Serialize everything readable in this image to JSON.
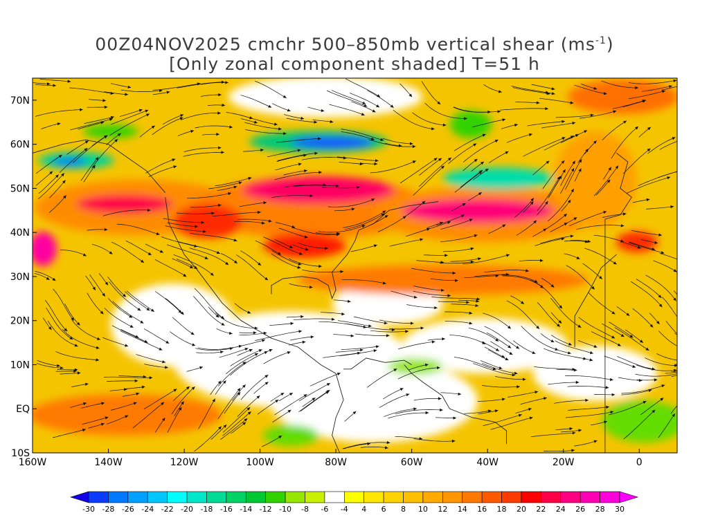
{
  "title": {
    "line1_prefix": "00Z04NOV2025 cmchr 500–850mb vertical shear (ms",
    "line1_superscript": "-1",
    "line1_suffix": ")",
    "line2": "[Only zonal component shaded] T=51 h"
  },
  "map": {
    "lon_range": [
      -160,
      10
    ],
    "lat_range": [
      -10,
      75
    ],
    "x_ticks": [
      {
        "lon": -160,
        "label": "160W"
      },
      {
        "lon": -140,
        "label": "140W"
      },
      {
        "lon": -120,
        "label": "120W"
      },
      {
        "lon": -100,
        "label": "100W"
      },
      {
        "lon": -80,
        "label": "80W"
      },
      {
        "lon": -60,
        "label": "60W"
      },
      {
        "lon": -40,
        "label": "40W"
      },
      {
        "lon": -20,
        "label": "20W"
      },
      {
        "lon": 0,
        "label": "0"
      }
    ],
    "y_ticks": [
      {
        "lat": 70,
        "label": "70N"
      },
      {
        "lat": 60,
        "label": "60N"
      },
      {
        "lat": 50,
        "label": "50N"
      },
      {
        "lat": 40,
        "label": "40N"
      },
      {
        "lat": 30,
        "label": "30N"
      },
      {
        "lat": 20,
        "label": "20N"
      },
      {
        "lat": 10,
        "label": "10N"
      },
      {
        "lat": 0,
        "label": "EQ"
      },
      {
        "lat": -10,
        "label": "10S"
      }
    ]
  },
  "colorbar": {
    "labels": [
      "-30",
      "-28",
      "-26",
      "-24",
      "-22",
      "-20",
      "-18",
      "-16",
      "-14",
      "-12",
      "-10",
      "-8",
      "-6",
      "-4",
      "4",
      "6",
      "8",
      "10",
      "12",
      "14",
      "16",
      "18",
      "20",
      "22",
      "24",
      "26",
      "28",
      "30"
    ],
    "colors": [
      "#1400e6",
      "#0a3cff",
      "#0078ff",
      "#00a0ff",
      "#00c8ff",
      "#00ffff",
      "#00e6c8",
      "#00dc96",
      "#00d264",
      "#00c832",
      "#32d200",
      "#96e600",
      "#c8f000",
      "#ffffff",
      "#ffff00",
      "#ffe600",
      "#ffd200",
      "#ffbe00",
      "#ffaa00",
      "#ff9600",
      "#ff7800",
      "#ff5a00",
      "#ff3c00",
      "#ff0000",
      "#ff0046",
      "#ff0082",
      "#ff00b4",
      "#ff00dc",
      "#ff00ff"
    ]
  }
}
